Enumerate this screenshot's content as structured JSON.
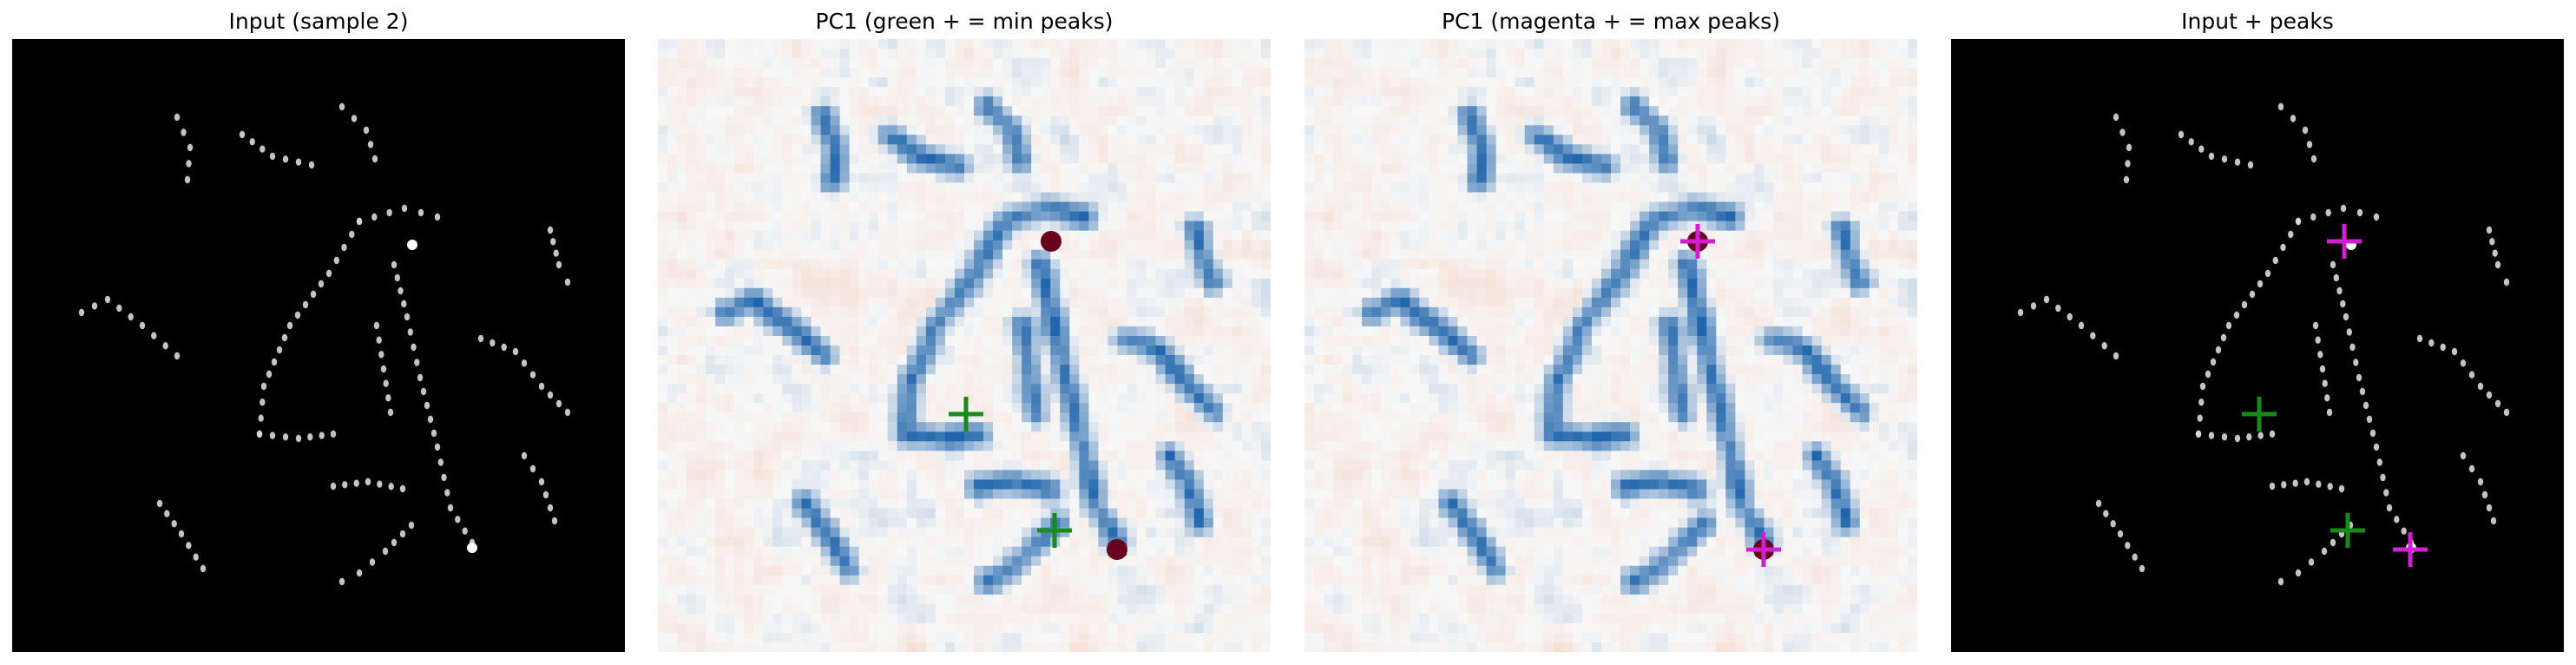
{
  "panels": [
    {
      "id": "input",
      "title": "Input (sample 2)",
      "kind": "input",
      "show_min": false,
      "show_max": false
    },
    {
      "id": "pc1-min",
      "title": "PC1 (green + = min peaks)",
      "kind": "pc",
      "show_min": true,
      "show_max": false
    },
    {
      "id": "pc1-max",
      "title": "PC1 (magenta + = max peaks)",
      "kind": "pc",
      "show_min": false,
      "show_max": true
    },
    {
      "id": "input-peaks",
      "title": "Input + peaks",
      "kind": "input",
      "show_min": true,
      "show_max": true
    }
  ],
  "marker_colors": {
    "min": "#1a8a1a",
    "max": "#d21fd2"
  },
  "colormap": {
    "negative": "#08306b",
    "mid": "#f7f7f7",
    "positive": "#67001f"
  },
  "background_colors": {
    "input": "#000000",
    "dot": "#d9d9d9"
  }
}
